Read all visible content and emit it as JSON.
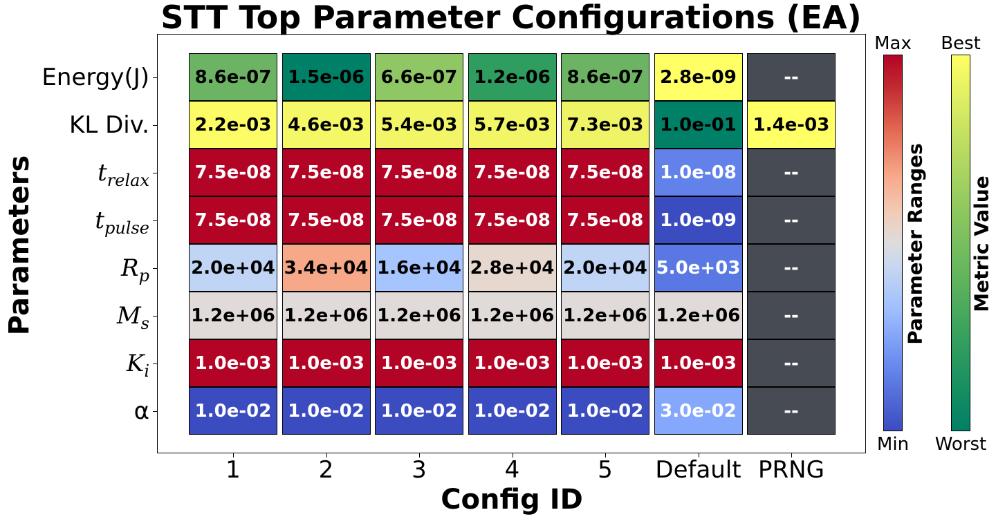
{
  "chart_data": {
    "type": "heatmap",
    "title": "STT Top Parameter Configurations (EA)",
    "xlabel": "Config ID",
    "ylabel": "Parameters",
    "columns": [
      "1",
      "2",
      "3",
      "4",
      "5",
      "Default",
      "PRNG"
    ],
    "rows": [
      {
        "label_main": "Energy(J)",
        "label_sub": "",
        "italic": false,
        "values": [
          "8.6e-07",
          "1.5e-06",
          "6.6e-07",
          "1.2e-06",
          "8.6e-07",
          "2.8e-09",
          "--"
        ],
        "colors": [
          "#6cb463",
          "#008066",
          "#8fc765",
          "#2f9c60",
          "#6cb463",
          "#ffff66",
          "#474c54"
        ],
        "text_colors": [
          "#000",
          "#000",
          "#000",
          "#000",
          "#000",
          "#000",
          "#fff"
        ]
      },
      {
        "label_main": "KL Div.",
        "label_sub": "",
        "italic": false,
        "values": [
          "2.2e-03",
          "4.6e-03",
          "5.4e-03",
          "5.7e-03",
          "7.3e-03",
          "1.0e-01",
          "1.4e-03"
        ],
        "colors": [
          "#fbfc66",
          "#f5f866",
          "#f2f666",
          "#f2f666",
          "#eef465",
          "#008066",
          "#ffff66"
        ],
        "text_colors": [
          "#000",
          "#000",
          "#000",
          "#000",
          "#000",
          "#000",
          "#000"
        ]
      },
      {
        "label_main": "t",
        "label_sub": "relax",
        "italic": true,
        "values": [
          "7.5e-08",
          "7.5e-08",
          "7.5e-08",
          "7.5e-08",
          "7.5e-08",
          "1.0e-08",
          "--"
        ],
        "colors": [
          "#b40426",
          "#b40426",
          "#b40426",
          "#b40426",
          "#b40426",
          "#6282ea",
          "#474c54"
        ],
        "text_colors": [
          "#fff",
          "#fff",
          "#fff",
          "#fff",
          "#fff",
          "#fff",
          "#fff"
        ]
      },
      {
        "label_main": "t",
        "label_sub": "pulse",
        "italic": true,
        "values": [
          "7.5e-08",
          "7.5e-08",
          "7.5e-08",
          "7.5e-08",
          "7.5e-08",
          "1.0e-09",
          "--"
        ],
        "colors": [
          "#b40426",
          "#b40426",
          "#b40426",
          "#b40426",
          "#b40426",
          "#3b4cc0",
          "#474c54"
        ],
        "text_colors": [
          "#fff",
          "#fff",
          "#fff",
          "#fff",
          "#fff",
          "#fff",
          "#fff"
        ]
      },
      {
        "label_main": "R",
        "label_sub": "p",
        "italic": true,
        "values": [
          "2.0e+04",
          "3.4e+04",
          "1.6e+04",
          "2.8e+04",
          "2.0e+04",
          "5.0e+03",
          "--"
        ],
        "colors": [
          "#c0d4f5",
          "#f6a889",
          "#a6c4fe",
          "#e6d7cf",
          "#c0d4f5",
          "#5a78e4",
          "#474c54"
        ],
        "text_colors": [
          "#000",
          "#000",
          "#000",
          "#000",
          "#000",
          "#fff",
          "#fff"
        ]
      },
      {
        "label_main": "M",
        "label_sub": "s",
        "italic": true,
        "values": [
          "1.2e+06",
          "1.2e+06",
          "1.2e+06",
          "1.2e+06",
          "1.2e+06",
          "1.2e+06",
          "--"
        ],
        "colors": [
          "#e0dbd8",
          "#e0dbd8",
          "#e0dbd8",
          "#e0dbd8",
          "#e0dbd8",
          "#e0dbd8",
          "#474c54"
        ],
        "text_colors": [
          "#000",
          "#000",
          "#000",
          "#000",
          "#000",
          "#000",
          "#fff"
        ]
      },
      {
        "label_main": "K",
        "label_sub": "i",
        "italic": true,
        "values": [
          "1.0e-03",
          "1.0e-03",
          "1.0e-03",
          "1.0e-03",
          "1.0e-03",
          "1.0e-03",
          "--"
        ],
        "colors": [
          "#b40426",
          "#b40426",
          "#b40426",
          "#b40426",
          "#b40426",
          "#b40426",
          "#474c54"
        ],
        "text_colors": [
          "#fff",
          "#fff",
          "#fff",
          "#fff",
          "#fff",
          "#fff",
          "#fff"
        ]
      },
      {
        "label_main": "α",
        "label_sub": "",
        "italic": false,
        "values": [
          "1.0e-02",
          "1.0e-02",
          "1.0e-02",
          "1.0e-02",
          "1.0e-02",
          "3.0e-02",
          "--"
        ],
        "colors": [
          "#3b4cc0",
          "#3b4cc0",
          "#3b4cc0",
          "#3b4cc0",
          "#3b4cc0",
          "#85a8fc",
          "#474c54"
        ],
        "text_colors": [
          "#fff",
          "#fff",
          "#fff",
          "#fff",
          "#fff",
          "#fff",
          "#fff"
        ]
      }
    ],
    "colorbars": [
      {
        "label": "Parameter Ranges",
        "top": "Max",
        "bottom": "Min",
        "colormap": "coolwarm"
      },
      {
        "label": "Metric Value",
        "top": "Best",
        "bottom": "Worst",
        "colormap": "summer_r"
      }
    ]
  }
}
